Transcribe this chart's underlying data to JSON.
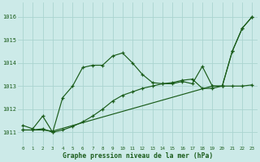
{
  "xlabel": "Graphe pression niveau de la mer (hPa)",
  "x_ticks": [
    0,
    1,
    2,
    3,
    4,
    5,
    6,
    7,
    8,
    9,
    10,
    11,
    12,
    13,
    14,
    15,
    16,
    17,
    18,
    19,
    20,
    21,
    22,
    23
  ],
  "ylim": [
    1010.4,
    1016.6
  ],
  "yticks": [
    1011,
    1012,
    1013,
    1014,
    1015,
    1016
  ],
  "background_color": "#cceae8",
  "grid_color": "#aad4d0",
  "line_color": "#1a5c1a",
  "lines": [
    {
      "x": [
        0,
        1,
        2,
        3,
        4,
        5,
        6,
        7,
        8,
        9,
        10,
        11,
        12,
        13,
        14,
        15,
        16,
        17,
        18,
        19,
        20,
        21,
        22,
        23
      ],
      "y": [
        1011.3,
        1011.15,
        1011.7,
        1011.0,
        1012.5,
        1013.0,
        1013.8,
        1013.9,
        1013.9,
        1014.3,
        1014.43,
        1014.0,
        1013.5,
        1013.15,
        1013.1,
        1013.1,
        1013.2,
        1013.1,
        1013.85,
        1013.0,
        1013.0,
        1014.5,
        1015.5,
        1016.0
      ]
    },
    {
      "x": [
        0,
        1,
        2,
        3,
        4,
        5,
        6,
        7,
        8,
        9,
        10,
        11,
        12,
        13,
        14,
        15,
        16,
        17,
        18,
        19,
        20,
        21,
        22,
        23
      ],
      "y": [
        1011.1,
        1011.1,
        1011.15,
        1011.0,
        1011.1,
        1011.25,
        1011.45,
        1011.7,
        1012.0,
        1012.35,
        1012.6,
        1012.75,
        1012.9,
        1013.0,
        1013.1,
        1013.15,
        1013.25,
        1013.3,
        1012.9,
        1012.9,
        1013.0,
        1013.0,
        1013.0,
        1013.05
      ]
    },
    {
      "x": [
        0,
        1,
        2,
        3,
        19,
        20,
        21,
        22,
        23
      ],
      "y": [
        1011.1,
        1011.1,
        1011.1,
        1011.05,
        1013.0,
        1013.0,
        1014.5,
        1015.5,
        1016.0
      ]
    }
  ]
}
